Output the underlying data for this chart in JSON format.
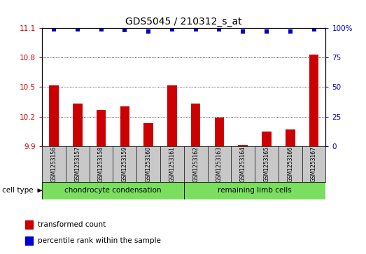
{
  "title": "GDS5045 / 210312_s_at",
  "samples": [
    "GSM1253156",
    "GSM1253157",
    "GSM1253158",
    "GSM1253159",
    "GSM1253160",
    "GSM1253161",
    "GSM1253162",
    "GSM1253163",
    "GSM1253164",
    "GSM1253165",
    "GSM1253166",
    "GSM1253167"
  ],
  "bar_values": [
    10.52,
    10.33,
    10.27,
    10.3,
    10.13,
    10.52,
    10.33,
    10.19,
    9.91,
    10.05,
    10.07,
    10.83
  ],
  "percentile_values": [
    99,
    99,
    99,
    98,
    97,
    99,
    99,
    99,
    97,
    97,
    97,
    99
  ],
  "bar_color": "#cc0000",
  "percentile_color": "#0000cc",
  "ylim_left": [
    9.9,
    11.1
  ],
  "ylim_right": [
    0,
    100
  ],
  "yticks_left": [
    9.9,
    10.2,
    10.5,
    10.8,
    11.1
  ],
  "yticks_right": [
    0,
    25,
    50,
    75,
    100
  ],
  "ytick_labels_right": [
    "0",
    "25",
    "50",
    "75",
    "100%"
  ],
  "grid_values": [
    10.2,
    10.5,
    10.8
  ],
  "cell_types": [
    {
      "label": "chondrocyte condensation",
      "start": 0,
      "end": 6,
      "color": "#7adf5f"
    },
    {
      "label": "remaining limb cells",
      "start": 6,
      "end": 12,
      "color": "#7adf5f"
    }
  ],
  "cell_type_label": "cell type",
  "legend_items": [
    {
      "label": "transformed count",
      "color": "#cc0000"
    },
    {
      "label": "percentile rank within the sample",
      "color": "#0000cc"
    }
  ],
  "sample_bg_color": "#c8c8c8",
  "plot_bg_color": "#ffffff",
  "bar_width": 0.4
}
